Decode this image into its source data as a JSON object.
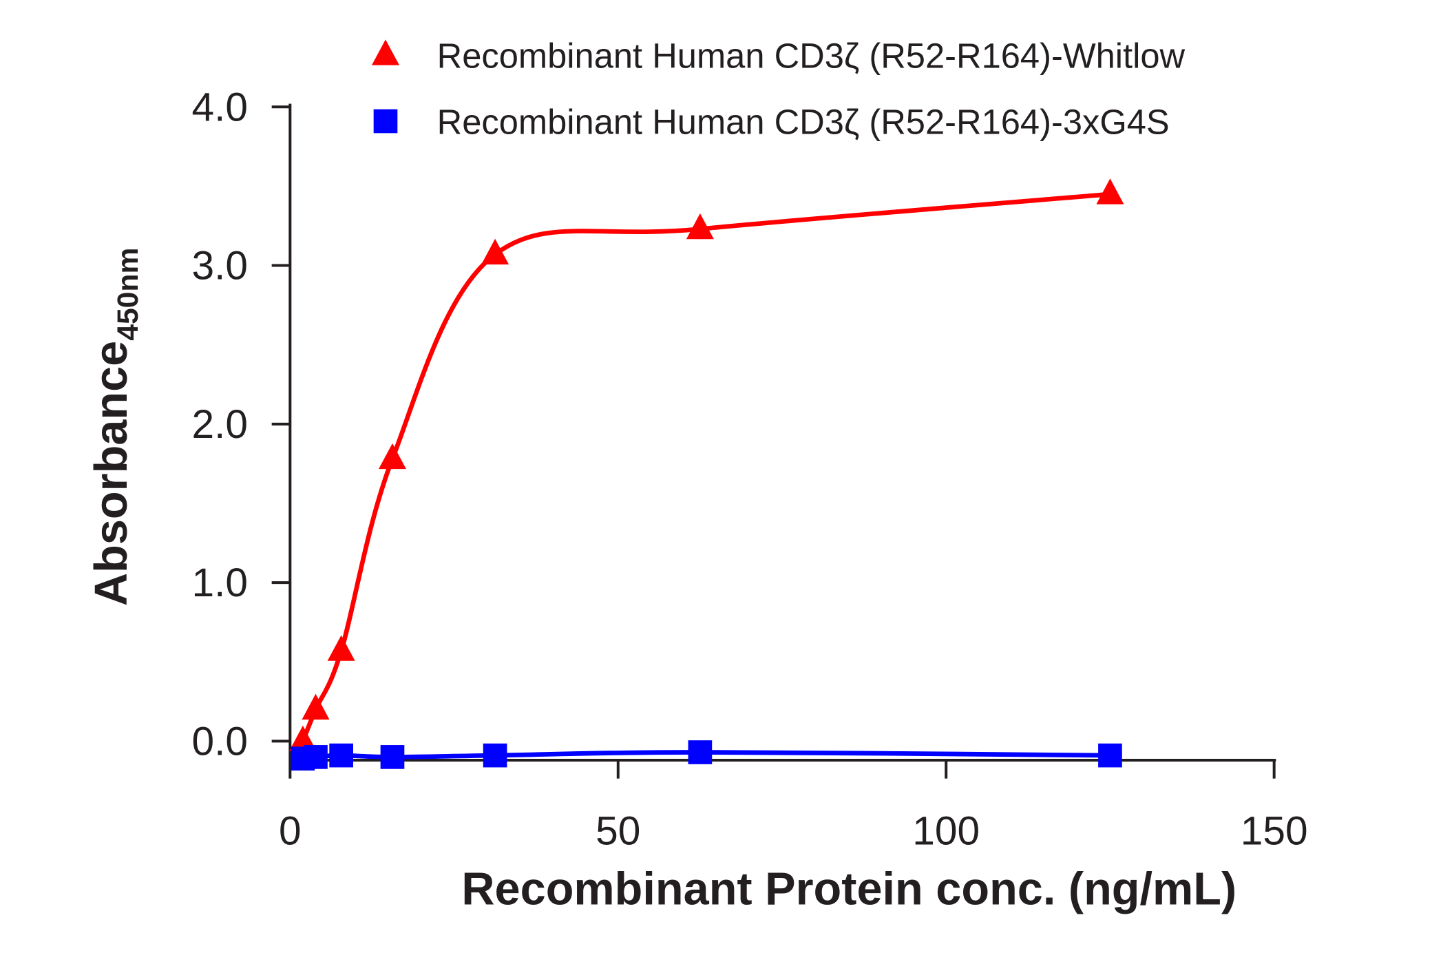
{
  "chart_data": {
    "type": "scatter",
    "x_label": "Recombinant Protein conc. (ng/mL)",
    "y_label": "Absorbance",
    "y_label_sub": "450nm",
    "x": [
      1.95,
      3.9,
      7.8,
      15.6,
      31.25,
      62.5,
      125
    ],
    "series": [
      {
        "name": "Recombinant Human CD3ζ (R52-R164)-Whitlow",
        "color": "#ff0000",
        "marker": "triangle",
        "values": [
          0.0,
          0.2,
          0.57,
          1.78,
          3.07,
          3.23,
          3.45
        ]
      },
      {
        "name": "Recombinant Human CD3ζ (R52-R164)-3xG4S",
        "color": "#0000ff",
        "marker": "square",
        "values": [
          -0.11,
          -0.1,
          -0.09,
          -0.1,
          -0.09,
          -0.07,
          -0.09
        ]
      }
    ],
    "xlim": [
      0,
      150
    ],
    "xticks": [
      0,
      50,
      100,
      150
    ],
    "ylim": [
      -0.12,
      4.02
    ],
    "yticks": [
      {
        "value": 0,
        "label": "0.0"
      },
      {
        "value": 1,
        "label": "1.0"
      },
      {
        "value": 2,
        "label": "2.0"
      },
      {
        "value": 3,
        "label": "3.0"
      },
      {
        "value": 4,
        "label": "4.0"
      }
    ],
    "legend": "top"
  }
}
